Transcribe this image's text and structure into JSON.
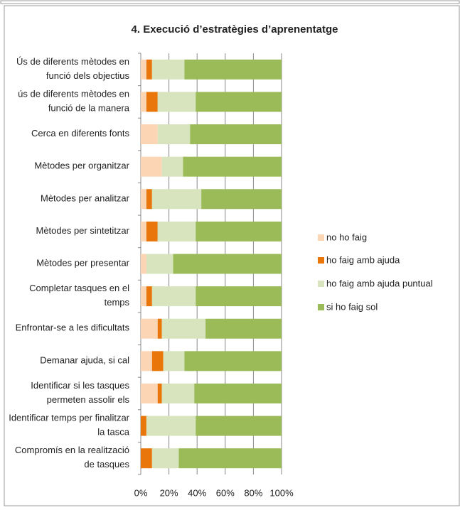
{
  "chart_data": {
    "type": "stacked_barh",
    "title": "4. Execució d’estratègies d’aprenentatge",
    "categories": [
      "Ús de diferents mètodes en funció dels objectius",
      "ús de diferents mètodes en funció de la manera",
      "Cerca en diferents fonts",
      "Mètodes per organitzar",
      "Mètodes per analitzar",
      "Mètodes per sintetitzar",
      "Mètodes per presentar",
      "Completar tasques en el temps",
      "Enfrontar-se a les dificultats",
      "Demanar ajuda, si cal",
      "Identificar si les tasques permeten assolir els",
      "Identificar temps per finalitzar la tasca",
      "Compromís en la realització de tasques"
    ],
    "series": [
      {
        "name": "no ho faig",
        "color": "#fcd5b5",
        "values": [
          4,
          4,
          12,
          15,
          4,
          4,
          4,
          4,
          12,
          8,
          12,
          0,
          0
        ]
      },
      {
        "name": "ho faig amb ajuda",
        "color": "#e8760a",
        "values": [
          4,
          8,
          0,
          0,
          4,
          8,
          0,
          4,
          3,
          8,
          3,
          4,
          8
        ]
      },
      {
        "name": "ho faig amb ajuda puntual",
        "color": "#d7e4bd",
        "values": [
          23,
          27,
          23,
          15,
          35,
          27,
          19,
          31,
          31,
          15,
          23,
          35,
          19
        ]
      },
      {
        "name": "si ho faig sol",
        "color": "#9bbb59",
        "values": [
          69,
          61,
          65,
          70,
          57,
          61,
          77,
          61,
          54,
          69,
          62,
          61,
          73
        ]
      }
    ],
    "xlim": [
      0,
      100
    ],
    "xticks": [
      {
        "value": 0,
        "label": "0%"
      },
      {
        "value": 20,
        "label": "20%"
      },
      {
        "value": 40,
        "label": "40%"
      },
      {
        "value": 60,
        "label": "60%"
      },
      {
        "value": 80,
        "label": "80%"
      },
      {
        "value": 100,
        "label": "100%"
      }
    ],
    "grid": true,
    "legend": "right"
  }
}
